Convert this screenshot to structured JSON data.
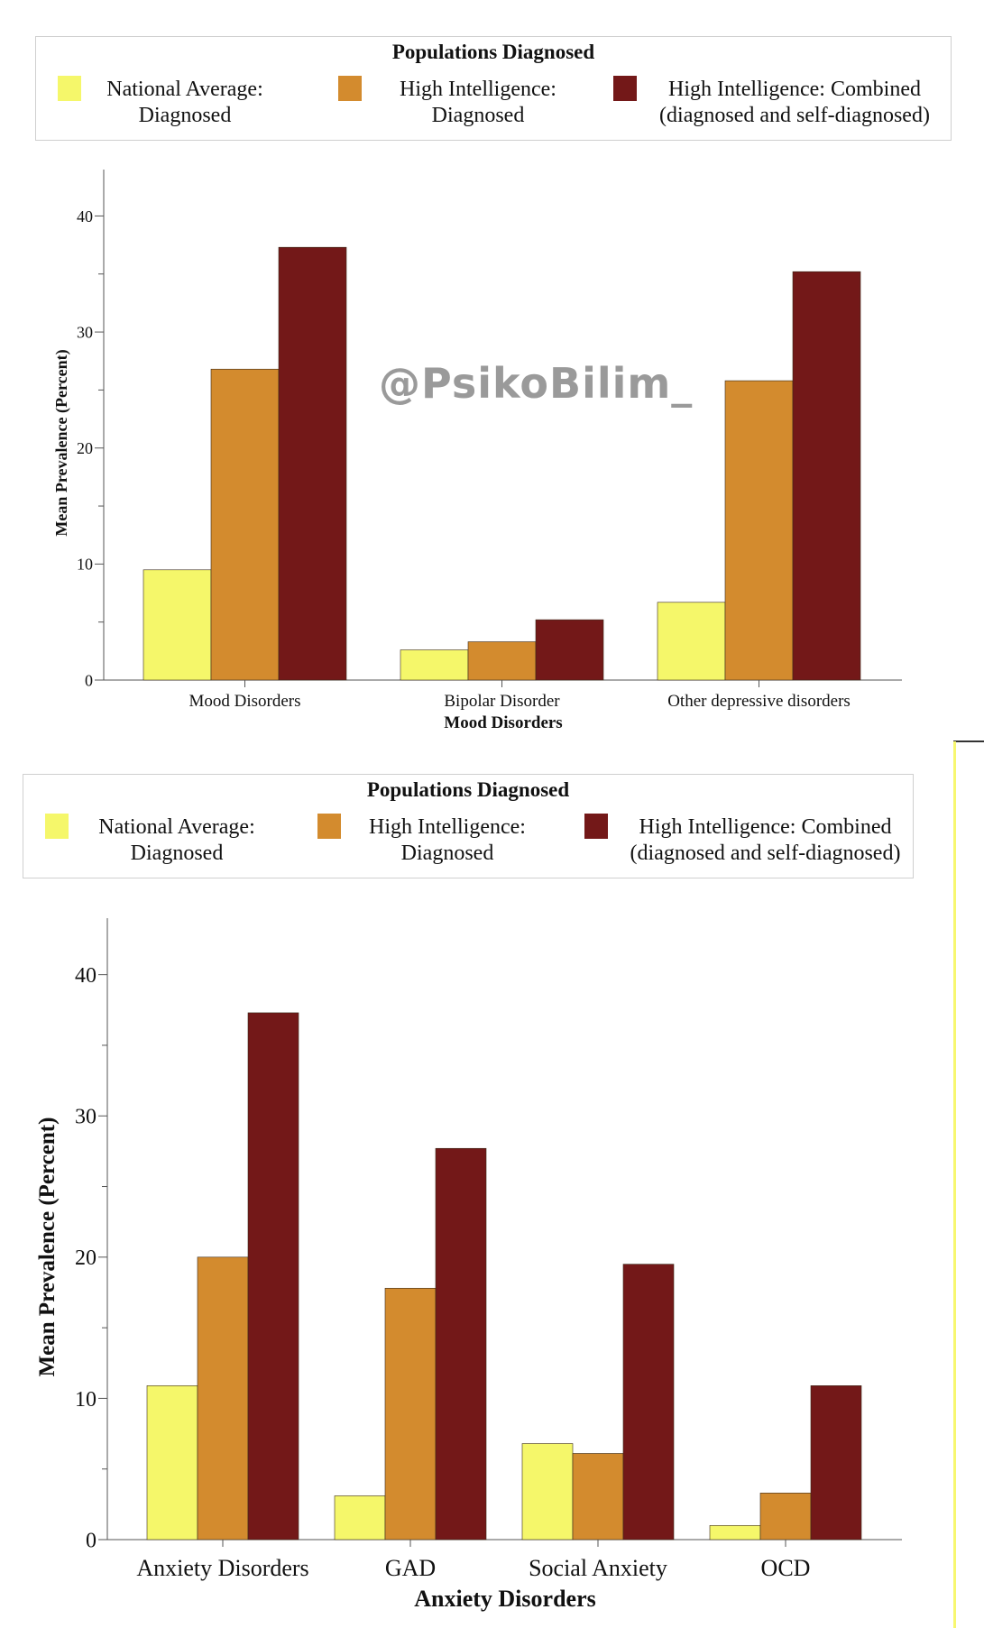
{
  "watermark": "@PsikoBilim_",
  "colors": {
    "national": "#f5f76a",
    "high": "#d38b2e",
    "combined": "#731818"
  },
  "legend": {
    "title": "Populations Diagnosed",
    "items": [
      {
        "line1": "National Average:",
        "line2": "Diagnosed",
        "color": "#f5f76a"
      },
      {
        "line1": "High Intelligence:",
        "line2": "Diagnosed",
        "color": "#d38b2e"
      },
      {
        "line1": "High Intelligence: Combined",
        "line2": "(diagnosed and self-diagnosed)",
        "color": "#731818"
      }
    ]
  },
  "chart_data": [
    {
      "type": "bar",
      "title": "",
      "xlabel": "Mood Disorders",
      "ylabel": "Mean Prevalence (Percent)",
      "ylim": [
        0,
        44
      ],
      "yticks": [
        0,
        10,
        20,
        30,
        40
      ],
      "categories": [
        "Mood Disorders",
        "Bipolar Disorder",
        "Other depressive disorders"
      ],
      "series": [
        {
          "name": "National Average: Diagnosed",
          "values": [
            9.5,
            2.6,
            6.7
          ]
        },
        {
          "name": "High Intelligence: Diagnosed",
          "values": [
            26.8,
            3.3,
            25.8
          ]
        },
        {
          "name": "High Intelligence: Combined (diagnosed and self-diagnosed)",
          "values": [
            37.3,
            5.2,
            35.2
          ]
        }
      ]
    },
    {
      "type": "bar",
      "title": "",
      "xlabel": "Anxiety Disorders",
      "ylabel": "Mean Prevalence (Percent)",
      "ylim": [
        0,
        44
      ],
      "yticks": [
        0,
        10,
        20,
        30,
        40
      ],
      "categories": [
        "Anxiety Disorders",
        "GAD",
        "Social Anxiety",
        "OCD"
      ],
      "series": [
        {
          "name": "National Average: Diagnosed",
          "values": [
            10.9,
            3.1,
            6.8,
            1.0
          ]
        },
        {
          "name": "High Intelligence: Diagnosed",
          "values": [
            20.0,
            17.8,
            6.1,
            3.3
          ]
        },
        {
          "name": "High Intelligence: Combined (diagnosed and self-diagnosed)",
          "values": [
            37.3,
            27.7,
            19.5,
            10.9
          ]
        }
      ]
    }
  ]
}
